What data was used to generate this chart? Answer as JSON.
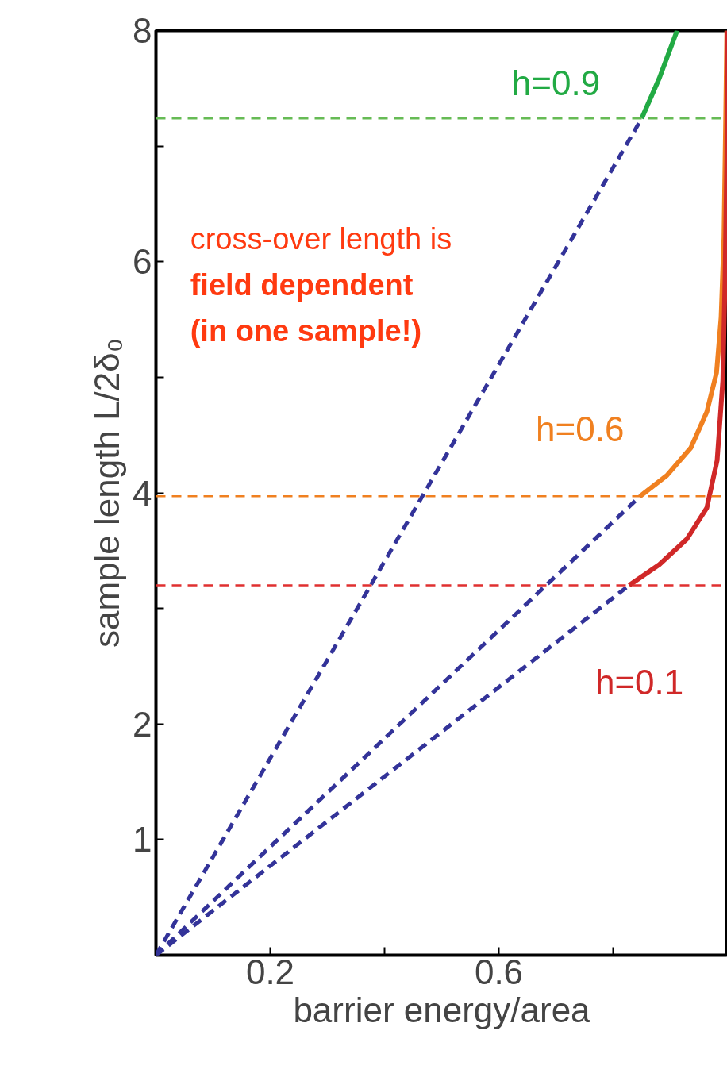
{
  "chart_data": {
    "type": "line",
    "xlabel": "barrier energy/area",
    "ylabel": "sample length L/2δ₀",
    "xlim": [
      0,
      1
    ],
    "ylim": [
      0,
      8
    ],
    "xticks": [
      0.2,
      {
        "value": 0.4,
        "label": null
      },
      0.6,
      {
        "value": 0.8,
        "label": null
      }
    ],
    "yticks": [
      1,
      2,
      {
        "value": 3,
        "label": null
      },
      4,
      {
        "value": 5,
        "label": null
      },
      6,
      {
        "value": 7,
        "label": null
      },
      8
    ],
    "grid": false,
    "series": [
      {
        "color": "#22aa44",
        "line_style": "solid",
        "x": [
          0.85,
          0.881,
          0.912
        ],
        "values": [
          7.24,
          7.59,
          8
        ]
      },
      {
        "color": "#f08020",
        "line_style": "solid",
        "x": [
          0.847,
          0.894,
          0.936,
          0.964,
          0.981,
          0.989,
          0.994,
          0.997,
          0.999
        ],
        "values": [
          3.97,
          4.15,
          4.39,
          4.7,
          5.04,
          5.52,
          6.21,
          7.24,
          8
        ]
      },
      {
        "color": "#d02828",
        "line_style": "solid",
        "x": [
          0.828,
          0.881,
          0.929,
          0.964,
          0.982,
          0.992,
          0.996,
          0.999,
          1
        ],
        "values": [
          3.2,
          3.38,
          3.6,
          3.87,
          4.28,
          4.97,
          5.87,
          6.9,
          8
        ]
      },
      {
        "color": "#333399",
        "line_style": "dashed",
        "x": [
          0,
          0.85
        ],
        "values": [
          0,
          7.24
        ]
      },
      {
        "color": "#333399",
        "line_style": "dashed",
        "x": [
          0,
          0.847
        ],
        "values": [
          0,
          3.97
        ]
      },
      {
        "color": "#333399",
        "line_style": "dashed",
        "x": [
          0,
          0.828
        ],
        "values": [
          0,
          3.2
        ]
      }
    ],
    "ref_lines": [
      {
        "axis": "y",
        "value": 7.24,
        "color": "#66bb55",
        "line_style": "dashed"
      },
      {
        "axis": "y",
        "value": 3.97,
        "color": "#f08020",
        "line_style": "dashed"
      },
      {
        "axis": "y",
        "value": 3.2,
        "color": "#e03030",
        "line_style": "dashed"
      }
    ],
    "annotations": [
      "h=0.9",
      "h=0.6",
      "h=0.1",
      "cross-over length is",
      "field dependent",
      "(in one sample!)"
    ]
  }
}
